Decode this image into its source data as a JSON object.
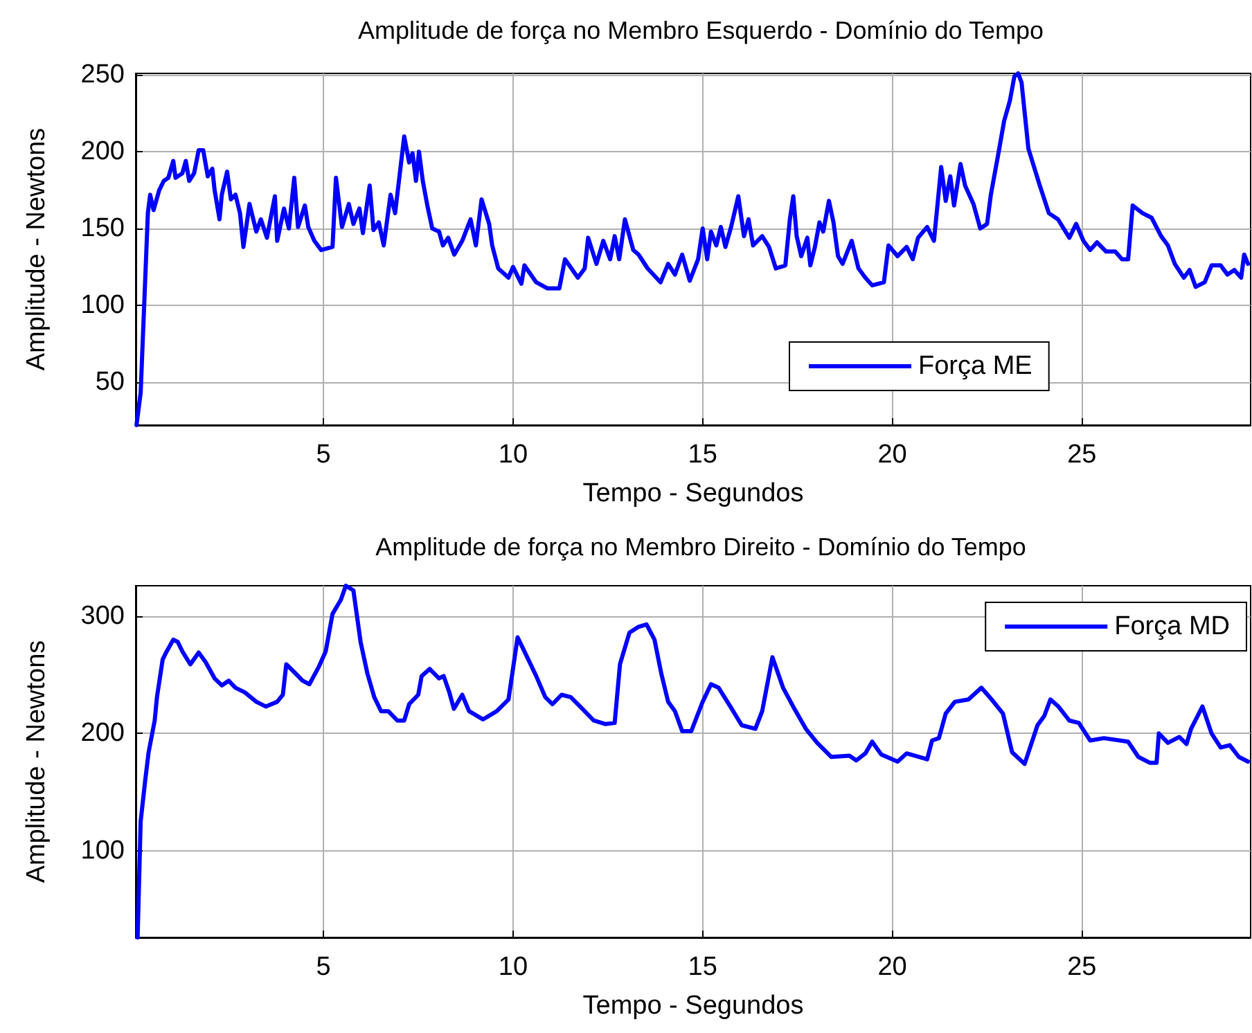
{
  "chart_data": [
    {
      "type": "line",
      "title": "Amplitude de força no Membro Esquerdo - Domínio do Tempo",
      "xlabel": "Tempo - Segundos",
      "ylabel": "Amplitude - Newtons",
      "xlim": [
        0.05,
        29.45
      ],
      "xticks": [
        5,
        10,
        15,
        20,
        25
      ],
      "ylim": [
        22,
        251
      ],
      "yticks": [
        50,
        100,
        150,
        200,
        250
      ],
      "grid": true,
      "legend": "bottom right",
      "series": [
        {
          "name": "Força ME",
          "color": "#0000ff",
          "x": [
            0.07,
            0.18,
            0.37,
            0.43,
            0.52,
            0.67,
            0.79,
            0.91,
            1.04,
            1.1,
            1.28,
            1.37,
            1.46,
            1.59,
            1.71,
            1.83,
            1.95,
            2.07,
            2.13,
            2.26,
            2.32,
            2.46,
            2.56,
            2.68,
            2.8,
            2.89,
            3.05,
            3.23,
            3.35,
            3.51,
            3.72,
            3.78,
            3.96,
            4.09,
            4.23,
            4.33,
            4.51,
            4.6,
            4.76,
            4.94,
            5.24,
            5.33,
            5.49,
            5.67,
            5.79,
            5.95,
            6.04,
            6.22,
            6.32,
            6.46,
            6.59,
            6.77,
            6.89,
            7.13,
            7.26,
            7.35,
            7.44,
            7.52,
            7.62,
            7.74,
            7.87,
            8.05,
            8.15,
            8.29,
            8.45,
            8.66,
            8.88,
            9.02,
            9.17,
            9.37,
            9.45,
            9.61,
            9.88,
            10.0,
            10.22,
            10.3,
            10.61,
            10.91,
            11.22,
            11.37,
            11.71,
            11.89,
            11.98,
            12.2,
            12.38,
            12.56,
            12.68,
            12.8,
            12.95,
            13.17,
            13.31,
            13.55,
            13.89,
            14.09,
            14.27,
            14.46,
            14.66,
            14.88,
            15.0,
            15.12,
            15.22,
            15.36,
            15.48,
            15.6,
            15.75,
            15.94,
            16.09,
            16.21,
            16.33,
            16.57,
            16.75,
            16.93,
            17.18,
            17.3,
            17.39,
            17.48,
            17.6,
            17.76,
            17.84,
            17.96,
            18.08,
            18.18,
            18.33,
            18.45,
            18.57,
            18.69,
            18.93,
            19.11,
            19.29,
            19.47,
            19.78,
            19.9,
            20.14,
            20.38,
            20.54,
            20.68,
            20.92,
            21.1,
            21.29,
            21.41,
            21.53,
            21.63,
            21.8,
            21.92,
            22.14,
            22.32,
            22.5,
            22.6,
            22.8,
            22.95,
            23.1,
            23.22,
            23.32,
            23.41,
            23.59,
            23.89,
            24.13,
            24.37,
            24.67,
            24.85,
            25.04,
            25.22,
            25.4,
            25.64,
            25.88,
            26.06,
            26.22,
            26.34,
            26.6,
            26.84,
            27.09,
            27.27,
            27.45,
            27.69,
            27.84,
            28.0,
            28.24,
            28.42,
            28.66,
            28.84,
            29.02,
            29.2,
            29.28,
            29.38
          ],
          "values": [
            22,
            43,
            160,
            172,
            162,
            175,
            181,
            183,
            194,
            183,
            186,
            194,
            181,
            186,
            201,
            201,
            184,
            189,
            175,
            156,
            172,
            187,
            169,
            172,
            160,
            138,
            166,
            148,
            156,
            144,
            171,
            142,
            163,
            150,
            183,
            151,
            165,
            151,
            142,
            136,
            138,
            183,
            151,
            166,
            153,
            163,
            147,
            178,
            149,
            154,
            139,
            172,
            160,
            210,
            193,
            199,
            181,
            200,
            181,
            165,
            150,
            148,
            139,
            144,
            133,
            142,
            156,
            139,
            169,
            153,
            139,
            124,
            118,
            125,
            114,
            126,
            115,
            111,
            111,
            130,
            118,
            124,
            144,
            127,
            142,
            130,
            145,
            130,
            156,
            136,
            133,
            124,
            115,
            127,
            120,
            133,
            116,
            130,
            150,
            130,
            148,
            139,
            151,
            138,
            151,
            171,
            145,
            156,
            139,
            145,
            138,
            124,
            126,
            156,
            171,
            145,
            132,
            144,
            126,
            138,
            154,
            148,
            168,
            154,
            132,
            127,
            142,
            124,
            118,
            113,
            115,
            139,
            132,
            138,
            130,
            144,
            151,
            142,
            190,
            168,
            184,
            165,
            192,
            178,
            166,
            150,
            153,
            172,
            199,
            220,
            233,
            249,
            251,
            245,
            202,
            178,
            160,
            156,
            144,
            153,
            142,
            136,
            141,
            135,
            135,
            130,
            130,
            165,
            160,
            157,
            145,
            139,
            127,
            118,
            123,
            112,
            115,
            126,
            126,
            120,
            123,
            118,
            133,
            127
          ]
        }
      ]
    },
    {
      "type": "line",
      "title": "Amplitude de força no Membro Direito - Domínio do Tempo",
      "xlabel": "Tempo - Segundos",
      "ylabel": "Amplitude - Newtons",
      "xlim": [
        0.05,
        29.45
      ],
      "xticks": [
        5,
        10,
        15,
        20,
        25
      ],
      "ylim": [
        26,
        326
      ],
      "yticks": [
        100,
        200,
        300
      ],
      "grid": true,
      "legend": "top right",
      "series": [
        {
          "name": "Força MD",
          "color": "#0000ff",
          "x": [
            0.1,
            0.18,
            0.3,
            0.39,
            0.55,
            0.61,
            0.76,
            0.85,
            1.04,
            1.16,
            1.28,
            1.49,
            1.71,
            1.89,
            2.13,
            2.32,
            2.5,
            2.68,
            2.93,
            3.23,
            3.48,
            3.78,
            3.93,
            4.02,
            4.27,
            4.45,
            4.63,
            4.88,
            5.06,
            5.24,
            5.46,
            5.59,
            5.79,
            5.98,
            6.16,
            6.34,
            6.52,
            6.71,
            6.95,
            7.13,
            7.26,
            7.5,
            7.59,
            7.8,
            8.05,
            8.17,
            8.32,
            8.44,
            8.66,
            8.84,
            9.21,
            9.57,
            9.88,
            10.12,
            10.3,
            10.61,
            10.85,
            11.04,
            11.28,
            11.52,
            11.83,
            12.13,
            12.44,
            12.68,
            12.82,
            13.07,
            13.31,
            13.52,
            13.73,
            13.91,
            14.09,
            14.27,
            14.46,
            14.7,
            15.0,
            15.22,
            15.42,
            15.73,
            16.03,
            16.39,
            16.57,
            16.84,
            17.12,
            17.42,
            17.72,
            18.02,
            18.39,
            18.87,
            19.05,
            19.29,
            19.47,
            19.71,
            20.14,
            20.38,
            20.92,
            21.05,
            21.23,
            21.41,
            21.65,
            22.01,
            22.35,
            22.62,
            22.92,
            23.16,
            23.49,
            23.83,
            24.01,
            24.17,
            24.38,
            24.67,
            24.92,
            25.22,
            25.58,
            26.22,
            26.49,
            26.79,
            26.97,
            27.03,
            27.27,
            27.57,
            27.76,
            27.88,
            28.18,
            28.42,
            28.66,
            28.9,
            29.14,
            29.38
          ],
          "values": [
            26,
            125,
            160,
            184,
            211,
            231,
            263,
            269,
            280,
            278,
            270,
            259,
            269,
            261,
            247,
            241,
            245,
            239,
            235,
            227,
            223,
            227,
            233,
            259,
            251,
            245,
            242,
            257,
            270,
            302,
            314,
            326,
            322,
            278,
            251,
            231,
            219,
            219,
            211,
            211,
            225,
            233,
            249,
            255,
            247,
            249,
            235,
            221,
            233,
            219,
            212,
            219,
            229,
            282,
            270,
            249,
            231,
            225,
            233,
            231,
            221,
            211,
            208,
            209,
            259,
            286,
            291,
            293,
            280,
            251,
            227,
            219,
            202,
            202,
            227,
            242,
            239,
            223,
            207,
            204,
            219,
            265,
            239,
            221,
            204,
            192,
            180,
            181,
            177,
            183,
            193,
            182,
            176,
            183,
            178,
            194,
            196,
            217,
            227,
            229,
            239,
            229,
            217,
            184,
            174,
            207,
            215,
            229,
            223,
            211,
            209,
            194,
            196,
            193,
            180,
            175,
            175,
            200,
            192,
            197,
            191,
            204,
            223,
            200,
            188,
            190,
            180,
            176
          ]
        }
      ]
    }
  ]
}
